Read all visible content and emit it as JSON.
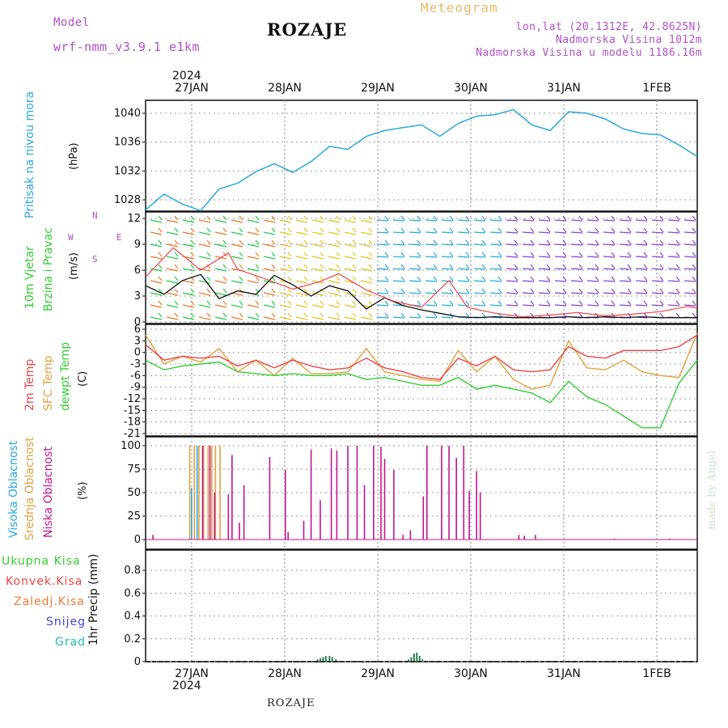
{
  "header": {
    "model_label": "Model",
    "model_name": "wrf-nmm_v3.9.1 e1km",
    "station": "ROZAJE",
    "title": "Meteogram",
    "coords": "lon,lat (20.1312E, 42.8625N)",
    "elevation": "Nadmorska Visina 1012m",
    "model_elevation": "Nadmorska Visina u modelu 1186.16m",
    "year_top": "2024"
  },
  "footer": {
    "station": "ROZAJE",
    "year_bottom": "2024",
    "credit": "made by Angel"
  },
  "colors": {
    "pressure": "#2aa7e0",
    "temp2m": "#ee4444",
    "sfc": "#e0a040",
    "dewpt": "#33cc33",
    "wind_speed": "#111111",
    "gust": "#ee4444",
    "grid": "#999999",
    "high_cloud": "#2aa7e0",
    "mid_cloud": "#e0a040",
    "low_cloud": "#c0168c",
    "precip": "#2e7d4f"
  },
  "chart_data": [
    {
      "type": "line",
      "panel": "pressure",
      "ylabel": [
        "Pritisak na nivou mora",
        "(hPa)"
      ],
      "yticks": [
        1028,
        1032,
        1036,
        1040
      ],
      "ylim": [
        1025.5,
        1042
      ],
      "x_dates": [
        "27JAN",
        "28JAN",
        "29JAN",
        "30JAN",
        "31JAN",
        "1FEB"
      ],
      "grid": true,
      "series": [
        {
          "x": [
            0.0,
            0.2,
            0.4,
            0.6,
            0.8,
            1.0,
            1.2,
            1.4,
            1.6,
            1.8,
            2.0,
            2.2,
            2.4,
            2.6,
            2.8,
            3.0,
            3.2,
            3.4,
            3.6,
            3.8,
            4.0,
            4.2,
            4.4,
            4.6,
            4.8,
            5.0,
            5.2,
            5.4,
            5.6,
            5.8,
            6.0
          ],
          "values": [
            1026.6,
            1028.8,
            1027.4,
            1026.5,
            1029.5,
            1030.3,
            1031.9,
            1033.0,
            1031.8,
            1033.3,
            1035.4,
            1035.0,
            1036.8,
            1037.6,
            1038.0,
            1038.4,
            1036.8,
            1038.6,
            1039.6,
            1039.8,
            1040.5,
            1038.4,
            1037.6,
            1040.2,
            1040.0,
            1039.2,
            1037.8,
            1037.2,
            1037.0,
            1035.6,
            1034.0
          ]
        }
      ]
    },
    {
      "type": "line",
      "panel": "wind",
      "ylabel": [
        "10m Vjetar",
        "Brzina i Pravac",
        "(m/s)"
      ],
      "compass": {
        "n": "N",
        "s": "S",
        "w": "W",
        "e": "E"
      },
      "yticks": [
        0,
        3,
        6,
        9,
        12
      ],
      "ylim": [
        0,
        13
      ],
      "grid": true,
      "series": [
        {
          "name": "speed",
          "x": [
            0.0,
            0.2,
            0.4,
            0.6,
            0.8,
            1.0,
            1.2,
            1.4,
            1.6,
            1.8,
            2.0,
            2.2,
            2.4,
            2.6,
            2.8,
            3.0,
            3.2,
            3.4,
            3.6,
            3.8,
            4.0,
            4.2,
            4.4,
            4.6,
            4.8,
            5.0,
            5.2,
            5.4,
            5.6,
            5.8,
            6.0
          ],
          "values": [
            4.2,
            3.2,
            4.8,
            5.5,
            2.7,
            3.6,
            3.2,
            5.4,
            4.3,
            3.0,
            4.2,
            3.6,
            1.5,
            2.8,
            1.9,
            1.4,
            1.0,
            0.6,
            0.5,
            0.6,
            0.5,
            0.5,
            0.5,
            0.6,
            0.5,
            0.6,
            0.5,
            0.6,
            0.5,
            0.5,
            0.5
          ]
        },
        {
          "name": "gust",
          "x": [
            0.0,
            0.3,
            0.6,
            0.9,
            1.0,
            1.3,
            1.6,
            1.9,
            2.1,
            2.4,
            2.7,
            3.0,
            3.3,
            3.5,
            3.8,
            4.1,
            4.4,
            4.7,
            5.0,
            5.3,
            5.6,
            5.9,
            6.0
          ],
          "values": [
            5.2,
            8.6,
            6.0,
            8.0,
            6.1,
            5.0,
            3.8,
            4.7,
            5.6,
            3.7,
            2.4,
            1.7,
            4.8,
            1.7,
            1.0,
            0.6,
            0.8,
            1.1,
            0.7,
            0.9,
            1.2,
            1.8,
            1.6
          ]
        }
      ]
    },
    {
      "type": "line",
      "panel": "temperature",
      "ylabel": [
        "2m Temp",
        "SFC Temp",
        "dewpt Temp",
        "(C)"
      ],
      "yticks": [
        -21,
        -18,
        -15,
        -12,
        -9,
        -6,
        -3,
        0,
        3,
        6
      ],
      "ylim": [
        -21,
        6.5
      ],
      "grid": true,
      "series": [
        {
          "name": "2m Temp",
          "x": [
            0.0,
            0.2,
            0.4,
            0.6,
            0.8,
            1.0,
            1.2,
            1.4,
            1.6,
            1.8,
            2.0,
            2.2,
            2.4,
            2.6,
            2.8,
            3.0,
            3.2,
            3.4,
            3.6,
            3.8,
            4.0,
            4.2,
            4.4,
            4.6,
            4.8,
            5.0,
            5.2,
            5.4,
            5.6,
            5.8,
            6.0
          ],
          "values": [
            2.0,
            -2.0,
            -1.0,
            -1.5,
            -1.0,
            -3.5,
            -2.0,
            -4.0,
            -2.0,
            -3.5,
            -4.5,
            -4.0,
            -1.5,
            -4.0,
            -5.0,
            -6.5,
            -7.0,
            -1.5,
            -3.5,
            -1.0,
            -4.5,
            -5.0,
            -4.5,
            1.5,
            -1.0,
            -1.5,
            0.5,
            0.5,
            0.5,
            1.5,
            4.5
          ]
        },
        {
          "name": "SFC Temp",
          "x": [
            0.0,
            0.2,
            0.4,
            0.6,
            0.8,
            1.0,
            1.2,
            1.4,
            1.6,
            1.8,
            2.0,
            2.2,
            2.4,
            2.6,
            2.8,
            3.0,
            3.2,
            3.4,
            3.6,
            3.8,
            4.0,
            4.2,
            4.4,
            4.6,
            4.8,
            5.0,
            5.2,
            5.4,
            5.6,
            5.8,
            6.0
          ],
          "values": [
            4.5,
            -3.0,
            -1.0,
            -2.5,
            1.0,
            -5.0,
            -2.0,
            -6.0,
            -1.5,
            -5.5,
            -5.5,
            -5.0,
            1.0,
            -5.0,
            -6.0,
            -7.0,
            -7.5,
            0.5,
            -5.0,
            -1.0,
            -7.0,
            -9.5,
            -8.5,
            3.0,
            -4.0,
            -4.5,
            -2.0,
            -5.0,
            -6.0,
            -6.5,
            5.0
          ]
        },
        {
          "name": "dewpt Temp",
          "x": [
            0.0,
            0.2,
            0.4,
            0.6,
            0.8,
            1.0,
            1.2,
            1.4,
            1.6,
            1.8,
            2.0,
            2.2,
            2.4,
            2.6,
            2.8,
            3.0,
            3.2,
            3.4,
            3.6,
            3.8,
            4.0,
            4.2,
            4.4,
            4.6,
            4.8,
            5.0,
            5.2,
            5.4,
            5.6,
            5.8,
            6.0
          ],
          "values": [
            -2.0,
            -4.5,
            -3.5,
            -3.0,
            -2.5,
            -5.0,
            -5.5,
            -6.0,
            -5.5,
            -6.0,
            -6.0,
            -5.5,
            -7.0,
            -6.5,
            -7.5,
            -8.5,
            -8.5,
            -6.5,
            -9.5,
            -8.5,
            -9.5,
            -10.5,
            -13.0,
            -7.5,
            -11.5,
            -13.5,
            -16.5,
            -19.5,
            -19.5,
            -8.0,
            -2.0
          ]
        }
      ]
    },
    {
      "type": "bar",
      "panel": "cloud",
      "ylabel": [
        "Visoka Oblacnost",
        "Srednja Oblacnost",
        "Niska Oblacnost",
        "(%)"
      ],
      "yticks": [
        0,
        25,
        50,
        75,
        100
      ],
      "ylim": [
        0,
        100
      ],
      "grid": true,
      "series": [
        {
          "name": "Visoka Oblacnost",
          "x": [
            0.5,
            0.56
          ],
          "values": [
            55,
            100
          ]
        },
        {
          "name": "Srednja Oblacnost",
          "x": [
            0.48,
            0.53,
            0.58,
            0.63,
            0.68,
            0.72,
            0.76,
            0.81
          ],
          "values": [
            100,
            100,
            100,
            100,
            100,
            100,
            100,
            100
          ]
        },
        {
          "name": "Niska Oblacnost",
          "x": [
            0.08,
            0.62,
            0.7,
            0.75,
            0.9,
            0.94,
            1.02,
            1.07,
            1.35,
            1.52,
            1.55,
            1.72,
            1.8,
            1.9,
            2.02,
            2.08,
            2.2,
            2.3,
            2.38,
            2.48,
            2.56,
            2.6,
            2.7,
            2.8,
            2.88,
            3.02,
            3.06,
            3.22,
            3.3,
            3.38,
            3.46,
            3.52,
            3.6,
            3.64,
            4.06,
            4.12,
            4.24,
            5.1,
            5.7
          ],
          "values": [
            5,
            100,
            100,
            50,
            48,
            90,
            18,
            58,
            88,
            74,
            8,
            20,
            96,
            42,
            97,
            95,
            100,
            100,
            58,
            100,
            99,
            86,
            74,
            5,
            10,
            46,
            100,
            100,
            100,
            87,
            100,
            52,
            73,
            50,
            5,
            4,
            5,
            1,
            1
          ]
        }
      ]
    },
    {
      "type": "bar",
      "panel": "precipitation",
      "ylabel": [
        "1hr Precip (mm)"
      ],
      "legend": [
        "Ukupna Kisa",
        "Konvek.Kisa",
        "Zaledj.Kisa",
        "Snijeg",
        "Grad"
      ],
      "yticks": [
        0,
        0.2,
        0.4,
        0.6,
        0.8
      ],
      "ylim": [
        0,
        1.0
      ],
      "grid": true,
      "series": [
        {
          "name": "Ukupna Kisa",
          "x": [
            1.87,
            1.9,
            1.93,
            1.96,
            2.0,
            2.03,
            2.07,
            2.86,
            2.89,
            2.92,
            2.95,
            2.98,
            3.01
          ],
          "values": [
            0.02,
            0.03,
            0.04,
            0.05,
            0.05,
            0.04,
            0.02,
            0.02,
            0.04,
            0.07,
            0.08,
            0.05,
            0.02
          ]
        }
      ]
    }
  ]
}
